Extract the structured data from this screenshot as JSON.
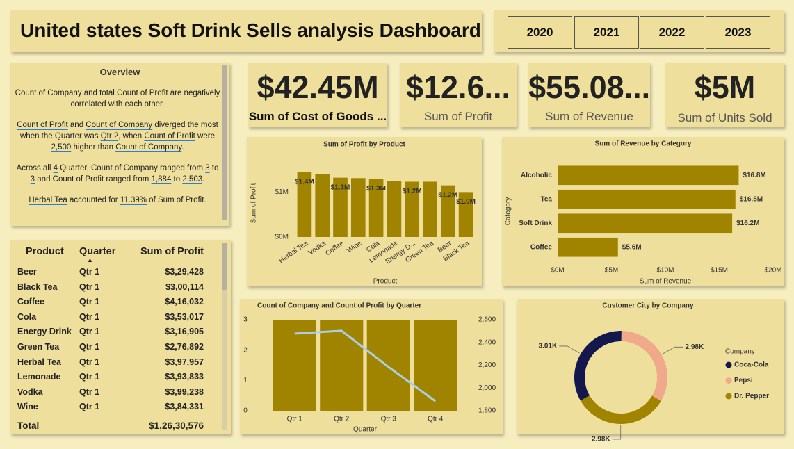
{
  "header": {
    "title": "United states Soft Drink Sells analysis Dashboard"
  },
  "years": [
    "2020",
    "2021",
    "2022",
    "2023"
  ],
  "kpis": [
    {
      "value": "$42.45M",
      "label": "Sum of Cost of Goods ..."
    },
    {
      "value": "$12.6...",
      "label": "Sum of Profit"
    },
    {
      "value": "$55.08...",
      "label": "Sum of Revenue"
    },
    {
      "value": "$5M",
      "label": "Sum of Units Sold"
    }
  ],
  "overview": {
    "title": "Overview",
    "paragraphs": [
      [
        {
          "text": "Count of Company and total Count of Profit are negatively correlated with each other.",
          "underline": false
        }
      ],
      [
        {
          "text": "Count of Profit",
          "underline": true
        },
        {
          "text": " and ",
          "underline": false
        },
        {
          "text": "Count of Company",
          "underline": true
        },
        {
          "text": " diverged the most when the Quarter was ",
          "underline": false
        },
        {
          "text": "Qtr 2",
          "underline": true
        },
        {
          "text": ", when ",
          "underline": false
        },
        {
          "text": "Count of Profit",
          "underline": true
        },
        {
          "text": " were ",
          "underline": false
        },
        {
          "text": "2,500",
          "underline": true
        },
        {
          "text": " higher than ",
          "underline": false
        },
        {
          "text": "Count of Company",
          "underline": true
        },
        {
          "text": ".",
          "underline": false
        }
      ],
      [
        {
          "text": "Across all ",
          "underline": false
        },
        {
          "text": "4",
          "underline": true
        },
        {
          "text": " Quarter, Count of Company ranged from ",
          "underline": false
        },
        {
          "text": "3",
          "underline": true
        },
        {
          "text": " to ",
          "underline": false
        },
        {
          "text": "3",
          "underline": true
        },
        {
          "text": " and Count of Profit ranged from ",
          "underline": false
        },
        {
          "text": "1,884",
          "underline": true
        },
        {
          "text": " to ",
          "underline": false
        },
        {
          "text": "2,503",
          "underline": true
        },
        {
          "text": ".",
          "underline": false
        }
      ],
      [
        {
          "text": "Herbal Tea",
          "underline": true
        },
        {
          "text": " accounted for ",
          "underline": false
        },
        {
          "text": "11.39%",
          "underline": true
        },
        {
          "text": " of Sum of Profit.",
          "underline": false
        }
      ]
    ]
  },
  "table": {
    "columns": [
      "Product",
      "Quarter",
      "Sum of Profit"
    ],
    "rows": [
      [
        "Beer",
        "Qtr 1",
        "$3,29,428"
      ],
      [
        "Black Tea",
        "Qtr 1",
        "$3,00,114"
      ],
      [
        "Coffee",
        "Qtr 1",
        "$4,16,032"
      ],
      [
        "Cola",
        "Qtr 1",
        "$3,53,017"
      ],
      [
        "Energy Drink",
        "Qtr 1",
        "$3,16,905"
      ],
      [
        "Green Tea",
        "Qtr 1",
        "$2,76,892"
      ],
      [
        "Herbal Tea",
        "Qtr 1",
        "$3,97,957"
      ],
      [
        "Lemonade",
        "Qtr 1",
        "$3,93,833"
      ],
      [
        "Vodka",
        "Qtr 1",
        "$3,99,238"
      ],
      [
        "Wine",
        "Qtr 1",
        "$3,84,331"
      ]
    ],
    "total": {
      "label": "Total",
      "value": "$1,26,30,576"
    }
  },
  "chart_data": [
    {
      "type": "bar",
      "title": "Sum of Profit by Product",
      "x_label": "Product",
      "y_label": "Sum of Profit",
      "categories": [
        "Herbal Tea",
        "Vodka",
        "Coffee",
        "Wine",
        "Cola",
        "Lemonade",
        "Energy D...",
        "Green Tea",
        "Beer",
        "Black Tea"
      ],
      "values": [
        1.44,
        1.4,
        1.32,
        1.31,
        1.29,
        1.25,
        1.23,
        1.23,
        1.15,
        1.0
      ],
      "value_labels": [
        "$1.4M",
        null,
        "$1.3M",
        null,
        "$1.3M",
        null,
        "$1.2M",
        null,
        "$1.2M",
        "$1.0M"
      ],
      "color": "#a08400",
      "ylim": [
        0,
        1.5
      ],
      "yticks": [
        {
          "value": 0,
          "label": "$0M"
        },
        {
          "value": 1,
          "label": "$1M"
        }
      ]
    },
    {
      "type": "hbar",
      "title": "Sum of Revenue by Category",
      "x_label": "Sum of Revenue",
      "y_label": "Category",
      "categories": [
        "Alcoholic",
        "Tea",
        "Soft Drink",
        "Coffee"
      ],
      "values": [
        16.8,
        16.5,
        16.2,
        5.6
      ],
      "value_labels": [
        "$16.8M",
        "$16.5M",
        "$16.2M",
        "$5.6M"
      ],
      "color": "#a08400",
      "xlim": [
        0,
        20
      ],
      "xticks": [
        {
          "value": 0,
          "label": "$0M"
        },
        {
          "value": 5,
          "label": "$5M"
        },
        {
          "value": 10,
          "label": "$10M"
        },
        {
          "value": 15,
          "label": "$15M"
        },
        {
          "value": 20,
          "label": "$20M"
        }
      ]
    },
    {
      "type": "combo",
      "title": "Count of Company and Count of Profit by Quarter",
      "x_label": "Quarter",
      "categories": [
        "Qtr 1",
        "Qtr 2",
        "Qtr 3",
        "Qtr 4"
      ],
      "series": [
        {
          "type": "bar",
          "color": "#a08400",
          "values": [
            3,
            3,
            3,
            3
          ]
        },
        {
          "type": "line",
          "axis": "y2",
          "color": "#a9cfe8",
          "values": [
            2478,
            2503,
            2185,
            1884
          ]
        }
      ],
      "ylim": [
        0,
        3
      ],
      "yticks": [
        0,
        1,
        2,
        3
      ],
      "y2lim": [
        1800,
        2600
      ],
      "y2ticks": [
        {
          "value": 1800,
          "label": "1,800"
        },
        {
          "value": 2000,
          "label": "2,000"
        },
        {
          "value": 2200,
          "label": "2,200"
        },
        {
          "value": 2400,
          "label": "2,400"
        },
        {
          "value": 2600,
          "label": "2,600"
        }
      ]
    },
    {
      "type": "donut",
      "title": "Customer City by Company",
      "legend_title": "Company",
      "categories": [
        "Coca-Cola",
        "Pepsi",
        "Dr. Pepper"
      ],
      "values": [
        3010,
        2980,
        2980
      ],
      "value_labels": [
        "3.01K",
        "2.98K",
        "2.98K"
      ],
      "colors": [
        "#14174d",
        "#f0a98a",
        "#a08400"
      ]
    }
  ]
}
